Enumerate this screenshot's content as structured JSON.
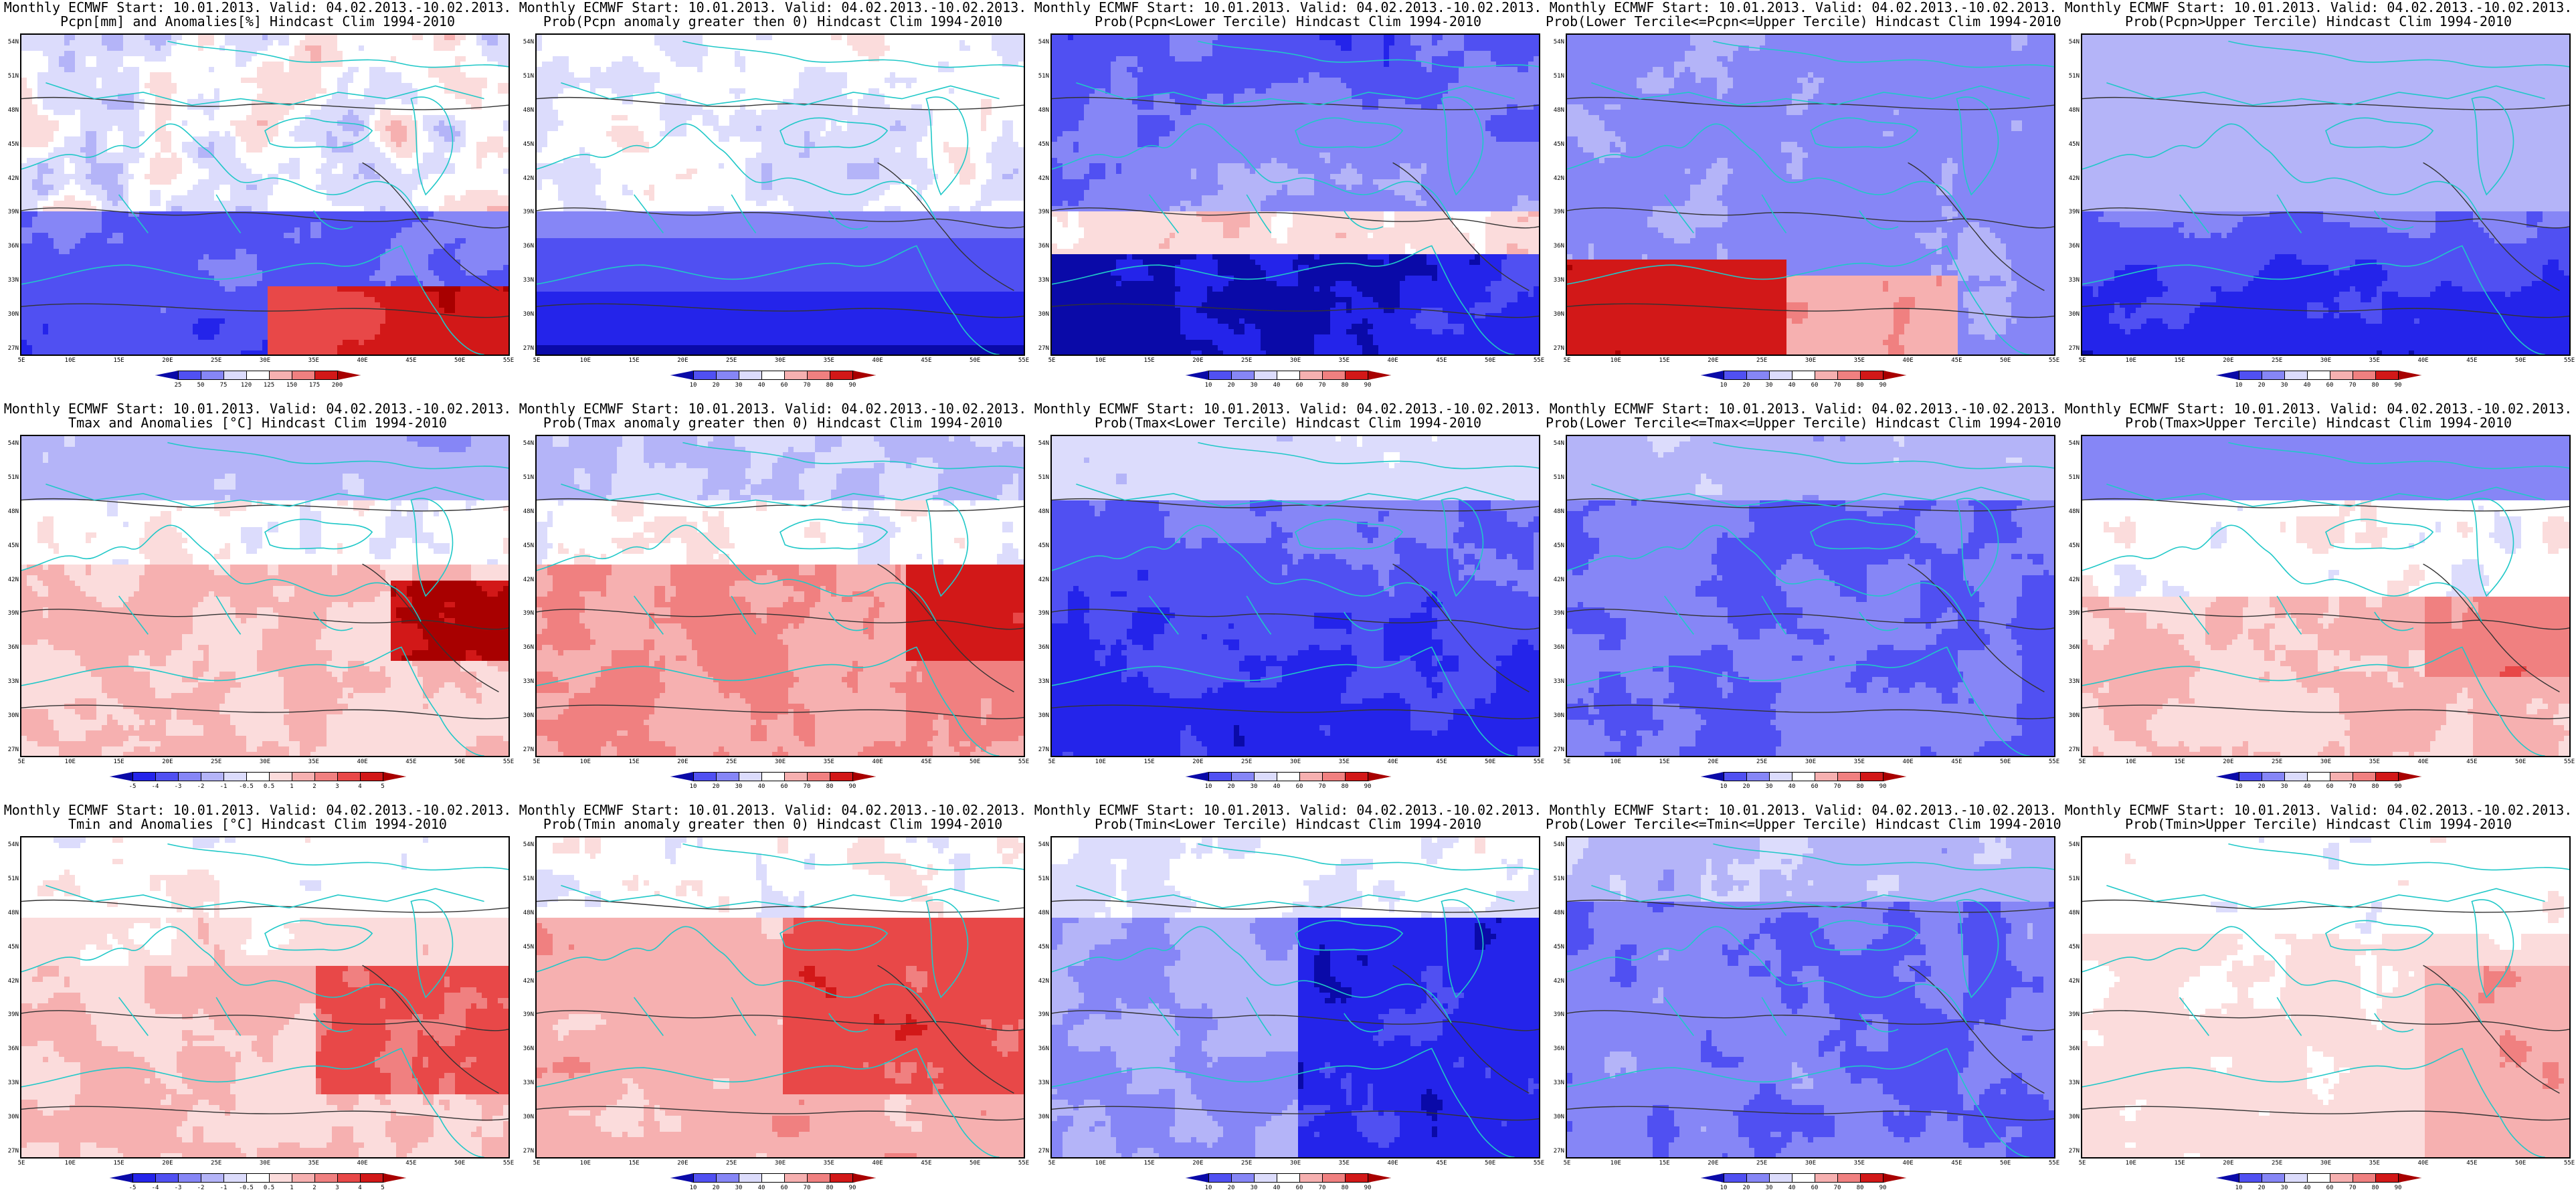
{
  "palette": {
    "diverging": [
      "#0a0aa8",
      "#2424ea",
      "#5050f2",
      "#8686f6",
      "#b4b4f8",
      "#dcdcfc",
      "#ffffff",
      "#fbdcdc",
      "#f6b0b0",
      "#f08080",
      "#e84848",
      "#d21818",
      "#a80000"
    ],
    "coast": "#20c8c8",
    "contour": "#333333"
  },
  "lat_labels": [
    "54N",
    "51N",
    "48N",
    "45N",
    "42N",
    "39N",
    "36N",
    "33N",
    "30N",
    "27N"
  ],
  "lon_labels": [
    "5E",
    "10E",
    "15E",
    "20E",
    "25E",
    "30E",
    "35E",
    "40E",
    "45E",
    "50E",
    "55E"
  ],
  "panels": [
    {
      "line1": "Monthly ECMWF Start: 10.01.2013. Valid: 04.02.2013.-10.02.2013.",
      "line2": "Pcpn[mm] and Anomalies[%] Hindcast Clim 1994-2010",
      "pattern": "pcpn_anom",
      "cbar": [
        "25",
        "50",
        "75",
        "120",
        "125",
        "150",
        "175",
        "200"
      ]
    },
    {
      "line1": "Monthly ECMWF Start: 10.01.2013. Valid: 04.02.2013.-10.02.2013.",
      "line2": "Prob(Pcpn anomaly greater then 0) Hindcast Clim 1994-2010",
      "pattern": "pcpn_prob",
      "cbar": [
        "10",
        "20",
        "30",
        "40",
        "60",
        "70",
        "80",
        "90"
      ]
    },
    {
      "line1": "Monthly ECMWF Start: 10.01.2013. Valid: 04.02.2013.-10.02.2013.",
      "line2": "Prob(Pcpn<Lower Tercile) Hindcast Clim 1994-2010",
      "pattern": "pcpn_lower",
      "cbar": [
        "10",
        "20",
        "30",
        "40",
        "60",
        "70",
        "80",
        "90"
      ]
    },
    {
      "line1": "Monthly ECMWF Start: 10.01.2013. Valid: 04.02.2013.-10.02.2013.",
      "line2": "Prob(Lower Tercile<=Pcpn<=Upper Tercile) Hindcast Clim 1994-2010",
      "pattern": "pcpn_middle",
      "cbar": [
        "10",
        "20",
        "30",
        "40",
        "60",
        "70",
        "80",
        "90"
      ]
    },
    {
      "line1": "Monthly ECMWF Start: 10.01.2013. Valid: 04.02.2013.-10.02.2013.",
      "line2": "Prob(Pcpn>Upper Tercile) Hindcast Clim 1994-2010",
      "pattern": "pcpn_upper",
      "cbar": [
        "10",
        "20",
        "30",
        "40",
        "60",
        "70",
        "80",
        "90"
      ]
    },
    {
      "line1": "Monthly ECMWF Start: 10.01.2013. Valid: 04.02.2013.-10.02.2013.",
      "line2": "Tmax and Anomalies [°C] Hindcast Clim 1994-2010",
      "pattern": "tmax_anom",
      "cbar": [
        "-5",
        "-4",
        "-3",
        "-2",
        "-1",
        "-0.5",
        "0.5",
        "1",
        "2",
        "3",
        "4",
        "5"
      ]
    },
    {
      "line1": "Monthly ECMWF Start: 10.01.2013. Valid: 04.02.2013.-10.02.2013.",
      "line2": "Prob(Tmax anomaly greater then 0) Hindcast Clim 1994-2010",
      "pattern": "tmax_prob",
      "cbar": [
        "10",
        "20",
        "30",
        "40",
        "60",
        "70",
        "80",
        "90"
      ]
    },
    {
      "line1": "Monthly ECMWF Start: 10.01.2013. Valid: 04.02.2013.-10.02.2013.",
      "line2": "Prob(Tmax<Lower Tercile) Hindcast Clim 1994-2010",
      "pattern": "tmax_lower",
      "cbar": [
        "10",
        "20",
        "30",
        "40",
        "60",
        "70",
        "80",
        "90"
      ]
    },
    {
      "line1": "Monthly ECMWF Start: 10.01.2013. Valid: 04.02.2013.-10.02.2013.",
      "line2": "Prob(Lower Tercile<=Tmax<=Upper Tercile) Hindcast Clim 1994-2010",
      "pattern": "tmax_middle",
      "cbar": [
        "10",
        "20",
        "30",
        "40",
        "60",
        "70",
        "80",
        "90"
      ]
    },
    {
      "line1": "Monthly ECMWF Start: 10.01.2013. Valid: 04.02.2013.-10.02.2013.",
      "line2": "Prob(Tmax>Upper Tercile) Hindcast Clim 1994-2010",
      "pattern": "tmax_upper",
      "cbar": [
        "10",
        "20",
        "30",
        "40",
        "60",
        "70",
        "80",
        "90"
      ]
    },
    {
      "line1": "Monthly ECMWF Start: 10.01.2013. Valid: 04.02.2013.-10.02.2013.",
      "line2": "Tmin and Anomalies [°C] Hindcast Clim 1994-2010",
      "pattern": "tmin_anom",
      "cbar": [
        "-5",
        "-4",
        "-3",
        "-2",
        "-1",
        "-0.5",
        "0.5",
        "1",
        "2",
        "3",
        "4",
        "5"
      ]
    },
    {
      "line1": "Monthly ECMWF Start: 10.01.2013. Valid: 04.02.2013.-10.02.2013.",
      "line2": "Prob(Tmin anomaly greater then 0) Hindcast Clim 1994-2010",
      "pattern": "tmin_prob",
      "cbar": [
        "10",
        "20",
        "30",
        "40",
        "60",
        "70",
        "80",
        "90"
      ]
    },
    {
      "line1": "Monthly ECMWF Start: 10.01.2013. Valid: 04.02.2013.-10.02.2013.",
      "line2": "Prob(Tmin<Lower Tercile) Hindcast Clim 1994-2010",
      "pattern": "tmin_lower",
      "cbar": [
        "10",
        "20",
        "30",
        "40",
        "60",
        "70",
        "80",
        "90"
      ]
    },
    {
      "line1": "Monthly ECMWF Start: 10.01.2013. Valid: 04.02.2013.-10.02.2013.",
      "line2": "Prob(Lower Tercile<=Tmin<=Upper Tercile) Hindcast Clim 1994-2010",
      "pattern": "tmin_middle",
      "cbar": [
        "10",
        "20",
        "30",
        "40",
        "60",
        "70",
        "80",
        "90"
      ]
    },
    {
      "line1": "Monthly ECMWF Start: 10.01.2013. Valid: 04.02.2013.-10.02.2013.",
      "line2": "Prob(Tmin>Upper Tercile) Hindcast Clim 1994-2010",
      "pattern": "tmin_upper",
      "cbar": [
        "10",
        "20",
        "30",
        "40",
        "60",
        "70",
        "80",
        "90"
      ]
    }
  ]
}
